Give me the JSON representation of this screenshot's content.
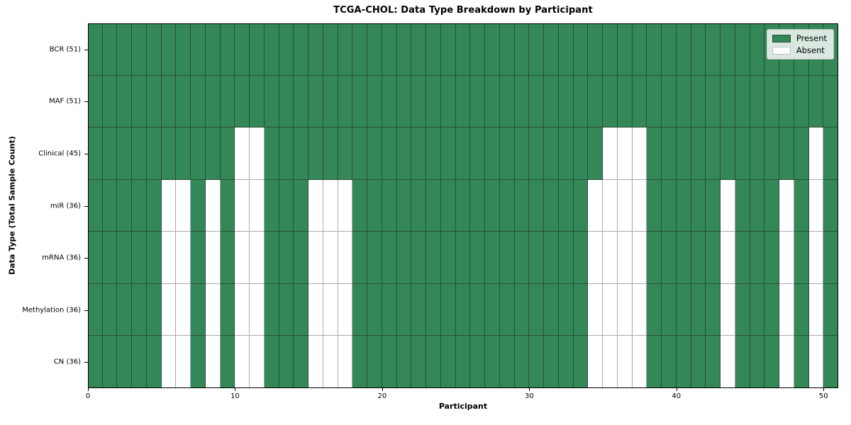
{
  "chart_data": {
    "type": "heatmap",
    "title": "TCGA-CHOL: Data Type Breakdown by Participant",
    "xlabel": "Participant",
    "ylabel": "Data Type (Total Sample Count)",
    "x_ticks": [
      0,
      10,
      20,
      30,
      40,
      50
    ],
    "x_range": [
      0,
      51
    ],
    "n_participants": 51,
    "grid": true,
    "legend_position": "upper right",
    "colors": {
      "present": "#348757",
      "absent": "#ffffff",
      "present_gridline": "#27503a",
      "absent_gridline": "#ababab",
      "frame": "#000000"
    },
    "legend": [
      {
        "id": "present",
        "label": "Present",
        "color": "#348757"
      },
      {
        "id": "absent",
        "label": "Absent",
        "color": "#ffffff"
      }
    ],
    "rows": [
      {
        "label": "BCR (51)",
        "data_type": "BCR",
        "total": 51,
        "absent_participants": []
      },
      {
        "label": "MAF (51)",
        "data_type": "MAF",
        "total": 51,
        "absent_participants": []
      },
      {
        "label": "Clinical (45)",
        "data_type": "Clinical",
        "total": 45,
        "absent_participants": [
          10,
          11,
          35,
          36,
          37,
          49
        ]
      },
      {
        "label": "miR (36)",
        "data_type": "miR",
        "total": 36,
        "absent_participants": [
          5,
          6,
          8,
          10,
          11,
          15,
          16,
          17,
          34,
          35,
          36,
          37,
          43,
          47,
          49
        ]
      },
      {
        "label": "mRNA (36)",
        "data_type": "mRNA",
        "total": 36,
        "absent_participants": [
          5,
          6,
          8,
          10,
          11,
          15,
          16,
          17,
          34,
          35,
          36,
          37,
          43,
          47,
          49
        ]
      },
      {
        "label": "Methylation (36)",
        "data_type": "Methylation",
        "total": 36,
        "absent_participants": [
          5,
          6,
          8,
          10,
          11,
          15,
          16,
          17,
          34,
          35,
          36,
          37,
          43,
          47,
          49
        ]
      },
      {
        "label": "CN (36)",
        "data_type": "CN",
        "total": 36,
        "absent_participants": [
          5,
          6,
          8,
          10,
          11,
          15,
          16,
          17,
          34,
          35,
          36,
          37,
          43,
          47,
          49
        ]
      }
    ]
  }
}
